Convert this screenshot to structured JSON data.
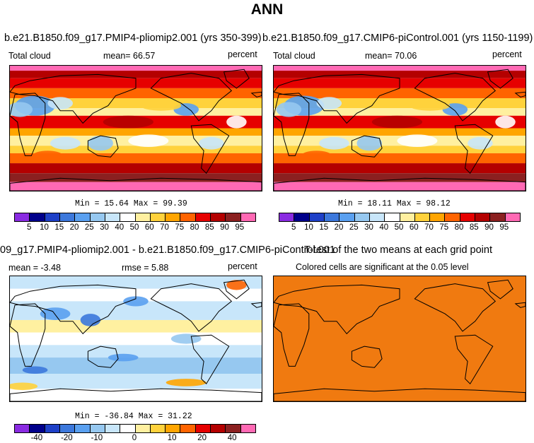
{
  "figure_title": "ANN",
  "panel1": {
    "title": "b.e21.B1850.f09_g17.PMIP4-pliomip2.001 (yrs 350-399)",
    "var": "Total cloud",
    "mean": "mean=  66.57",
    "units": "percent",
    "minmax": "Min =  15.64 Max =  99.39"
  },
  "panel2": {
    "title": "b.e21.B1850.f09_g17.CMIP6-piControl.001 (yrs 1150-1199)",
    "var": "Total cloud",
    "mean": "mean=  70.06",
    "units": "percent",
    "minmax": "Min =  18.11 Max =  98.12"
  },
  "panel3": {
    "title": "09_g17.PMIP4-pliomip2.001 - b.e21.B1850.f09_g17.CMIP6-piControl.001",
    "mean": "mean =  -3.48",
    "rmse": "rmse =   5.88",
    "units": "percent",
    "minmax": "Min = -36.84 Max =  31.22"
  },
  "panel4": {
    "title": "T-test of the two means at each grid point",
    "subtitle": "Colored cells are significant at the 0.05 level",
    "fill_color": "#f07a10"
  },
  "colorbar_abs": {
    "labels": [
      "5",
      "10",
      "15",
      "20",
      "25",
      "30",
      "40",
      "50",
      "60",
      "70",
      "75",
      "80",
      "85",
      "90",
      "95"
    ],
    "colors": [
      "#8a2be2",
      "#00008b",
      "#1e40c8",
      "#3c78dc",
      "#5aa0f0",
      "#96c8f0",
      "#c8e6fa",
      "#ffffff",
      "#fff0a0",
      "#ffd23c",
      "#ffa500",
      "#ff6400",
      "#e60000",
      "#b40000",
      "#8b2020",
      "#ff69b4"
    ]
  },
  "colorbar_diff": {
    "labels": [
      "-40",
      "-20",
      "-10",
      "0",
      "10",
      "20",
      "40"
    ],
    "colors": [
      "#8a2be2",
      "#00008b",
      "#1e40c8",
      "#3c78dc",
      "#5aa0f0",
      "#96c8f0",
      "#c8e6fa",
      "#ffffff",
      "#fff0a0",
      "#ffd23c",
      "#ffa500",
      "#ff6400",
      "#e60000",
      "#b40000",
      "#8b2020",
      "#ff69b4"
    ]
  }
}
